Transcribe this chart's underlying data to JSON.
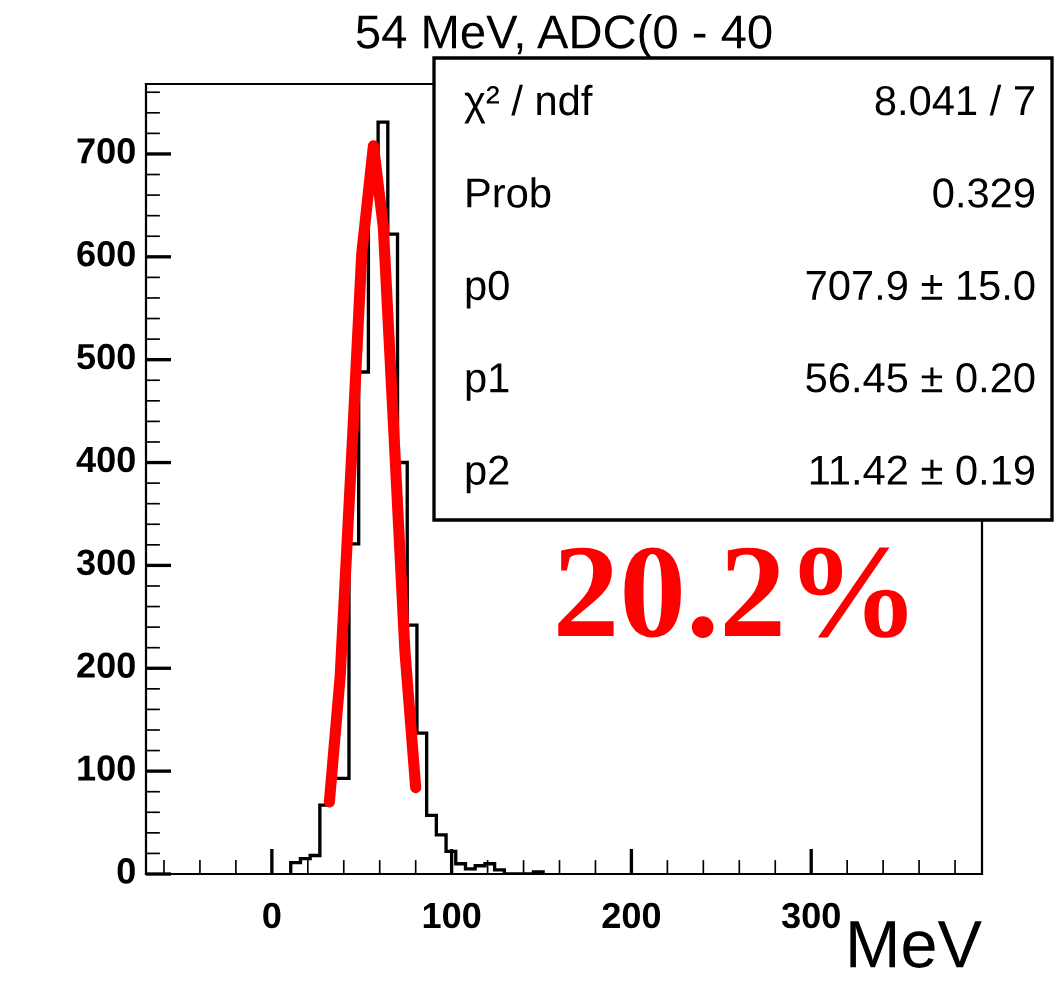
{
  "chart_data": {
    "type": "histogram",
    "title": "54 MeV, ADC(0 - 40",
    "xlabel": "MeV",
    "bins": [
      10.5,
      15.9,
      21.3,
      26.7,
      32.1,
      37.5,
      42.9,
      48.3,
      53.7,
      59.1,
      64.5,
      69.9,
      75.3,
      80.7,
      86.1,
      91.5,
      96.9,
      102.3,
      107.7,
      113.1,
      118.5,
      123.9,
      129.3,
      134.7,
      140.1,
      145.5,
      150.9
    ],
    "values": [
      11,
      15,
      18,
      67,
      93,
      93,
      321,
      488,
      680,
      731,
      622,
      400,
      242,
      137,
      57,
      38,
      22,
      10,
      5,
      8,
      10,
      4,
      0,
      0,
      0,
      2
    ],
    "color": "#000000",
    "series": [
      {
        "type": "line",
        "color": "#ff0000",
        "x": [
          32,
          38,
          45,
          50,
          56.5,
          62,
          68,
          74,
          80
        ],
        "values": [
          70,
          192,
          428,
          603,
          708,
          629,
          425,
          217,
          84
        ]
      }
    ],
    "xlim": [
      -70,
      395
    ],
    "ylim": [
      0,
      768
    ],
    "xticks": [
      0,
      100,
      200,
      300
    ],
    "yticks": [
      0,
      100,
      200,
      300,
      400,
      500,
      600,
      700
    ],
    "legend": false,
    "grid": false,
    "annotations": [
      "χ² / ndf",
      "8.041 / 7",
      "Prob",
      "0.329",
      "p0",
      "707.9 ± 15.0",
      "p1",
      "56.45 ± 0.20",
      "p2",
      "11.42 ± 0.19",
      "20.2%"
    ]
  }
}
